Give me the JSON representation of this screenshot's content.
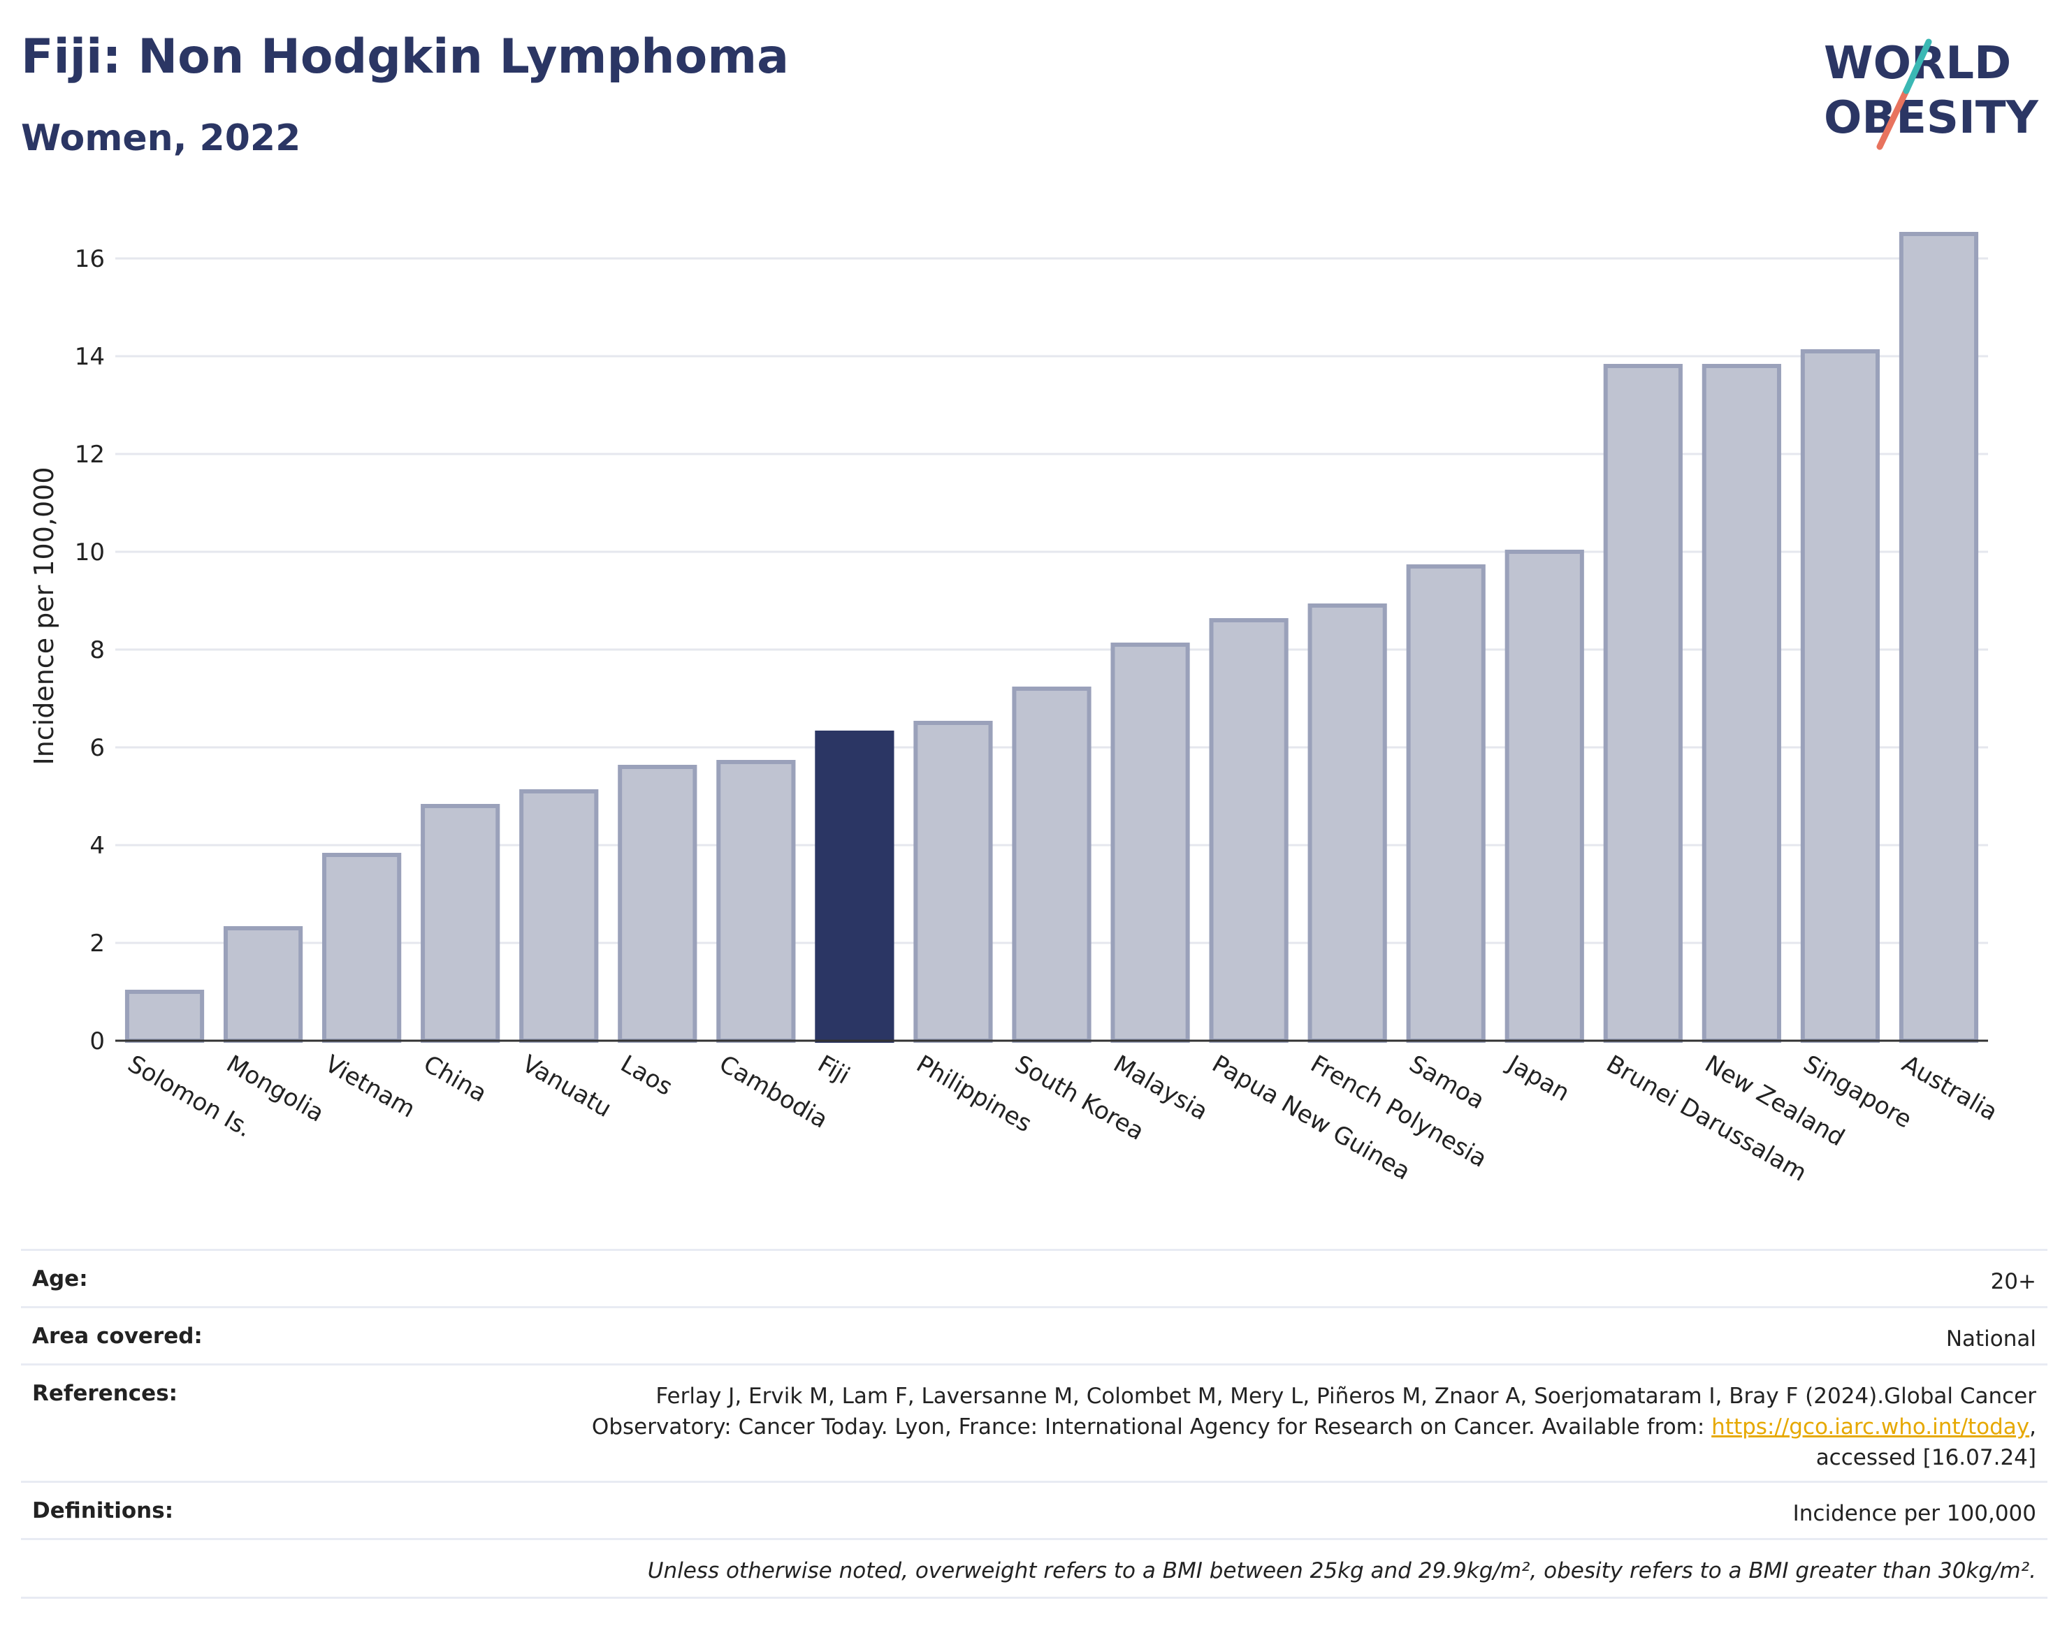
{
  "header": {
    "title": "Fiji: Non Hodgkin Lymphoma",
    "subtitle": "Women, 2022"
  },
  "logo": {
    "line1": "WORLD",
    "line2": "OBESITY"
  },
  "chart_data": {
    "type": "bar",
    "ylabel": "Incidence per 100,000",
    "xlabel": "",
    "ylim": [
      0,
      17
    ],
    "yticks": [
      0,
      2,
      4,
      6,
      8,
      10,
      12,
      14,
      16
    ],
    "grid": true,
    "highlight": "Fiji",
    "colors": {
      "bar": "#bfc3d1",
      "bar_edge": "#9aa1ba",
      "highlight": "#2b3664",
      "grid": "#e5e7ee"
    },
    "categories": [
      "Solomon Is.",
      "Mongolia",
      "Vietnam",
      "China",
      "Vanuatu",
      "Laos",
      "Cambodia",
      "Fiji",
      "Philippines",
      "South Korea",
      "Malaysia",
      "Papua New Guinea",
      "French Polynesia",
      "Samoa",
      "Japan",
      "Brunei Darussalam",
      "New Zealand",
      "Singapore",
      "Australia"
    ],
    "values": [
      1.0,
      2.3,
      3.8,
      4.8,
      5.1,
      5.6,
      5.7,
      6.3,
      6.5,
      7.2,
      8.1,
      8.6,
      8.9,
      9.7,
      10.0,
      13.8,
      13.8,
      14.1,
      16.5
    ]
  },
  "meta": {
    "age_label": "Age:",
    "age_value": "20+",
    "area_label": "Area covered:",
    "area_value": "National",
    "references_label": "References:",
    "references_line1": "Ferlay J, Ervik M, Lam F, Laversanne M, Colombet M, Mery L, Piñeros M, Znaor A, Soerjomataram I, Bray F (2024).Global Cancer",
    "references_line2_pre": "Observatory: Cancer Today. Lyon, France: International Agency for Research on Cancer. Available from: ",
    "references_link": "https://gco.iarc.who.int/today",
    "references_line2_post": ",",
    "references_line3": "accessed [16.07.24]",
    "definitions_label": "Definitions:",
    "definitions_value": "Incidence per 100,000",
    "note": "Unless otherwise noted, overweight refers to a BMI between 25kg and 29.9kg/m², obesity refers to a BMI greater than 30kg/m²."
  }
}
